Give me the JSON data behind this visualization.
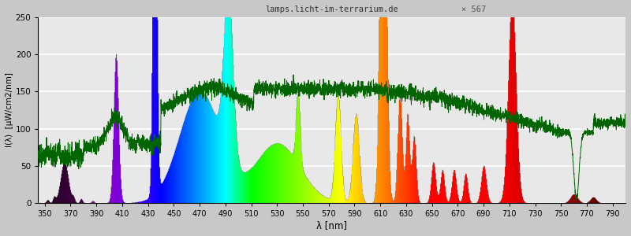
{
  "xlim": [
    345,
    800
  ],
  "ylim": [
    0,
    250
  ],
  "ylabel": "I(λ)  [μW/cm2/nm]",
  "xlabel": "λ [nm]",
  "title": "lamps.licht-im-terrarium.de",
  "marker_label": "× 567",
  "yticks": [
    0,
    50,
    100,
    150,
    200,
    250
  ],
  "xticks": [
    350,
    370,
    390,
    410,
    430,
    450,
    470,
    490,
    510,
    530,
    550,
    570,
    590,
    610,
    630,
    650,
    670,
    690,
    710,
    730,
    750,
    770,
    790
  ],
  "fig_bg": "#c8c8c8",
  "ax_bg": "#e8e8e8",
  "grid_color": "#ffffff",
  "line_color": "#006400"
}
